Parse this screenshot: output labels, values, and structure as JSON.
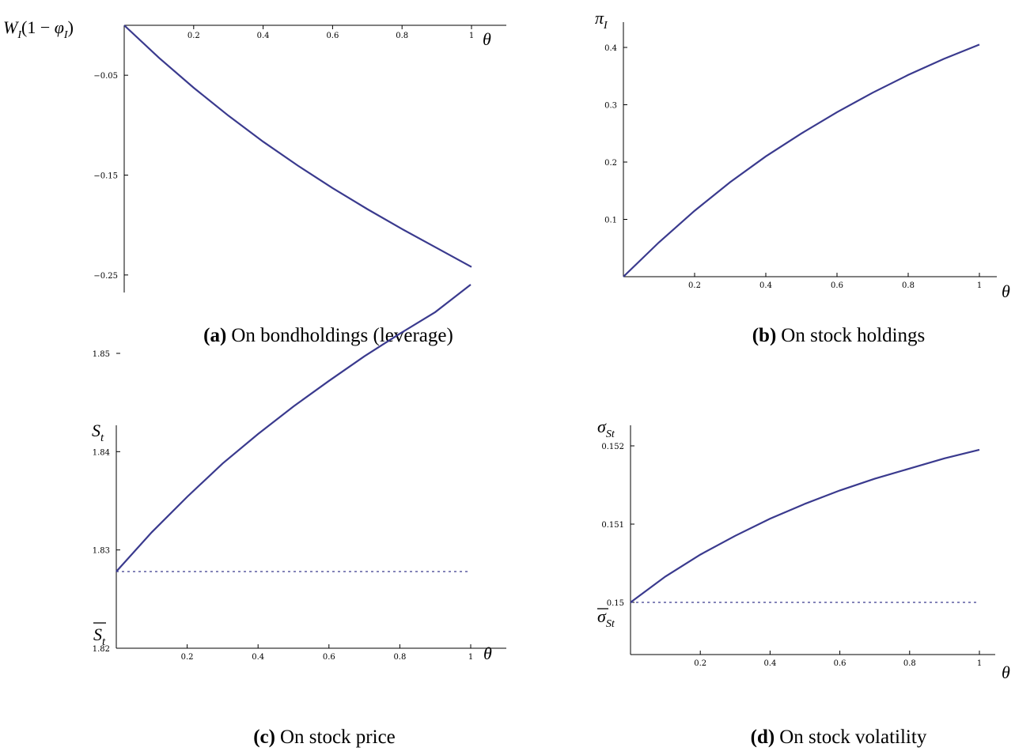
{
  "chart_data": [
    {
      "type": "line",
      "panel": "a",
      "caption_tag": "(a)",
      "caption_text": "On bondholdings (leverage)",
      "xlabel": "θ",
      "ylabel": "W_I(1 − φ_I)",
      "xlim": [
        0,
        1
      ],
      "ylim": [
        -0.262,
        0
      ],
      "xticks": [
        "0.2",
        "0.4",
        "0.6",
        "0.8",
        "1"
      ],
      "xtick_values": [
        0.2,
        0.4,
        0.6,
        0.8,
        1
      ],
      "yticks": [
        "−0.05",
        "−0.15",
        "−0.25"
      ],
      "ytick_values": [
        -0.05,
        -0.15,
        -0.25
      ],
      "x_axis_at": "top",
      "series": [
        {
          "x": [
            0,
            0.1,
            0.2,
            0.3,
            0.4,
            0.5,
            0.6,
            0.7,
            0.8,
            0.9,
            1.0
          ],
          "y": [
            0,
            -0.0325,
            -0.0625,
            -0.0905,
            -0.1165,
            -0.1405,
            -0.163,
            -0.184,
            -0.204,
            -0.223,
            -0.242
          ]
        }
      ]
    },
    {
      "type": "line",
      "panel": "b",
      "caption_tag": "(b)",
      "caption_text": "On stock holdings",
      "xlabel": "θ",
      "ylabel": "π_I",
      "xlim": [
        0,
        1.05
      ],
      "ylim": [
        0,
        0.45
      ],
      "xticks": [
        "0.2",
        "0.4",
        "0.6",
        "0.8",
        "1"
      ],
      "xtick_values": [
        0.2,
        0.4,
        0.6,
        0.8,
        1
      ],
      "yticks": [
        "0.1",
        "0.2",
        "0.3",
        "0.4"
      ],
      "ytick_values": [
        0.1,
        0.2,
        0.3,
        0.4
      ],
      "x_axis_at": "bottom",
      "series": [
        {
          "x": [
            0,
            0.1,
            0.2,
            0.3,
            0.4,
            0.5,
            0.6,
            0.7,
            0.8,
            0.9,
            1.0
          ],
          "y": [
            0,
            0.06,
            0.115,
            0.165,
            0.21,
            0.25,
            0.287,
            0.321,
            0.352,
            0.38,
            0.405
          ]
        }
      ]
    },
    {
      "type": "line",
      "panel": "c",
      "caption_tag": "(c)",
      "caption_text": "On stock price",
      "xlabel": "θ",
      "ylabel": "S_t",
      "ref_label": "S̄_t",
      "reference_y": 1.8278,
      "xlim": [
        0,
        1.05
      ],
      "ylim": [
        1.82,
        1.8625
      ],
      "xticks": [
        "0.2",
        "0.4",
        "0.6",
        "0.8",
        "1"
      ],
      "xtick_values": [
        0.2,
        0.4,
        0.6,
        0.8,
        1
      ],
      "yticks": [
        "1.82",
        "1.83",
        "1.84",
        "1.85"
      ],
      "ytick_values": [
        1.82,
        1.83,
        1.84,
        1.85
      ],
      "x_axis_at": "bottom",
      "series": [
        {
          "x": [
            0,
            0.1,
            0.2,
            0.3,
            0.4,
            0.5,
            0.6,
            0.7,
            0.8,
            0.9,
            1.0
          ],
          "y": [
            1.8278,
            1.8318,
            1.8354,
            1.8388,
            1.8418,
            1.8446,
            1.8472,
            1.8497,
            1.852,
            1.8542,
            1.857
          ]
        }
      ]
    },
    {
      "type": "line",
      "panel": "d",
      "caption_tag": "(d)",
      "caption_text": "On stock volatility",
      "xlabel": "θ",
      "ylabel": "σ_St",
      "ref_label": "σ̄_St",
      "reference_y": 0.15,
      "xlim": [
        0,
        1.05
      ],
      "ylim": [
        0.149,
        0.15225
      ],
      "xticks": [
        "0.2",
        "0.4",
        "0.6",
        "0.8",
        "1"
      ],
      "xtick_values": [
        0.2,
        0.4,
        0.6,
        0.8,
        1
      ],
      "yticks": [
        "0.15",
        "0.151",
        "0.152"
      ],
      "ytick_values": [
        0.15,
        0.151,
        0.152
      ],
      "x_axis_at": "bottom",
      "series": [
        {
          "x": [
            0,
            0.1,
            0.2,
            0.3,
            0.4,
            0.5,
            0.6,
            0.7,
            0.8,
            0.9,
            1.0
          ],
          "y": [
            0.15,
            0.15033,
            0.15061,
            0.15085,
            0.15107,
            0.15126,
            0.15143,
            0.15158,
            0.15171,
            0.15184,
            0.15195
          ]
        }
      ]
    }
  ]
}
